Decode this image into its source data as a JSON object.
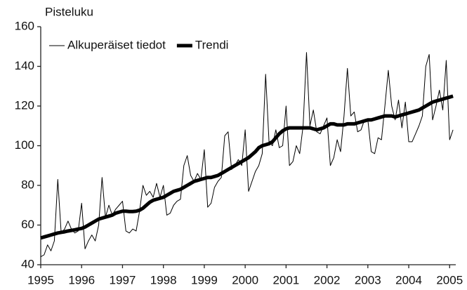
{
  "chart_data": {
    "type": "line",
    "ylabel": "Pisteluku",
    "x": [
      1995,
      1995.083,
      1995.167,
      1995.25,
      1995.333,
      1995.417,
      1995.5,
      1995.583,
      1995.667,
      1995.75,
      1995.833,
      1995.917,
      1996,
      1996.083,
      1996.167,
      1996.25,
      1996.333,
      1996.417,
      1996.5,
      1996.583,
      1996.667,
      1996.75,
      1996.833,
      1996.917,
      1997,
      1997.083,
      1997.167,
      1997.25,
      1997.333,
      1997.417,
      1997.5,
      1997.583,
      1997.667,
      1997.75,
      1997.833,
      1997.917,
      1998,
      1998.083,
      1998.167,
      1998.25,
      1998.333,
      1998.417,
      1998.5,
      1998.583,
      1998.667,
      1998.75,
      1998.833,
      1998.917,
      1999,
      1999.083,
      1999.167,
      1999.25,
      1999.333,
      1999.417,
      1999.5,
      1999.583,
      1999.667,
      1999.75,
      1999.833,
      1999.917,
      2000,
      2000.083,
      2000.167,
      2000.25,
      2000.333,
      2000.417,
      2000.5,
      2000.583,
      2000.667,
      2000.75,
      2000.833,
      2000.917,
      2001,
      2001.083,
      2001.167,
      2001.25,
      2001.333,
      2001.417,
      2001.5,
      2001.583,
      2001.667,
      2001.75,
      2001.833,
      2001.917,
      2002,
      2002.083,
      2002.167,
      2002.25,
      2002.333,
      2002.417,
      2002.5,
      2002.583,
      2002.667,
      2002.75,
      2002.833,
      2002.917,
      2003,
      2003.083,
      2003.167,
      2003.25,
      2003.333,
      2003.417,
      2003.5,
      2003.583,
      2003.667,
      2003.75,
      2003.833,
      2003.917,
      2004,
      2004.083,
      2004.167,
      2004.25,
      2004.333,
      2004.417,
      2004.5,
      2004.583,
      2004.667,
      2004.75,
      2004.833,
      2004.917,
      2005,
      2005.083
    ],
    "series": [
      {
        "name": "Alkuperäiset tiedot",
        "color": "#000000",
        "width": 1,
        "values": [
          44,
          45,
          50,
          47,
          52,
          83,
          56,
          58,
          62,
          58,
          56,
          57,
          71,
          48,
          52,
          55,
          52,
          60,
          84,
          64,
          70,
          65,
          68,
          70,
          72,
          57,
          56,
          58,
          57,
          67,
          80,
          75,
          77,
          74,
          81,
          74,
          80,
          65,
          66,
          70,
          72,
          73,
          90,
          95,
          85,
          82,
          86,
          83,
          98,
          69,
          71,
          79,
          82,
          84,
          105,
          107,
          88,
          90,
          93,
          90,
          108,
          77,
          82,
          87,
          90,
          96,
          136,
          102,
          100,
          108,
          99,
          100,
          120,
          90,
          92,
          100,
          96,
          110,
          147,
          110,
          118,
          107,
          106,
          110,
          114,
          90,
          94,
          103,
          97,
          115,
          139,
          115,
          117,
          107,
          108,
          113,
          113,
          97,
          96,
          104,
          103,
          120,
          138,
          120,
          113,
          123,
          109,
          122,
          102,
          102,
          106,
          110,
          115,
          140,
          146,
          113,
          120,
          128,
          118,
          143,
          103,
          108
        ]
      },
      {
        "name": "Trendi",
        "color": "#000000",
        "width": 5,
        "values": [
          53.5,
          54,
          54.5,
          55,
          55.5,
          56,
          56.3,
          56.6,
          57,
          57.3,
          57.6,
          58,
          58.3,
          59,
          60,
          61,
          62,
          63,
          63.5,
          64,
          64.5,
          65,
          66,
          66.5,
          67,
          67,
          66.8,
          66.8,
          67,
          67.5,
          68.5,
          70,
          71.5,
          72.5,
          73,
          73.5,
          74,
          75,
          76,
          77,
          77.5,
          78,
          79,
          80,
          81,
          82,
          82.5,
          83,
          83.5,
          84,
          84,
          84.5,
          85,
          86,
          87,
          88,
          89,
          90,
          91,
          92,
          93,
          94,
          95.5,
          97,
          99,
          100,
          100.5,
          101,
          102,
          104,
          106,
          107.5,
          108.5,
          109,
          109,
          109,
          109,
          109,
          109,
          109,
          108.5,
          108,
          108.5,
          109,
          110,
          111,
          111,
          110.5,
          110.5,
          110.5,
          111,
          111,
          111,
          111.5,
          112,
          112.5,
          113,
          113,
          113.5,
          114,
          114.5,
          115,
          115,
          115,
          114.5,
          115,
          115.5,
          116,
          116.5,
          117,
          117.5,
          118,
          119,
          120,
          121,
          122,
          122.5,
          123,
          123.5,
          124,
          124.5,
          125
        ]
      }
    ],
    "xlim": [
      1995,
      2005.15
    ],
    "xticks": [
      1995,
      1996,
      1997,
      1998,
      1999,
      2000,
      2001,
      2002,
      2003,
      2004,
      2005
    ],
    "ylim": [
      40,
      160
    ],
    "yticks": [
      40,
      60,
      80,
      100,
      120,
      140,
      160
    ],
    "legend": "upper left"
  }
}
